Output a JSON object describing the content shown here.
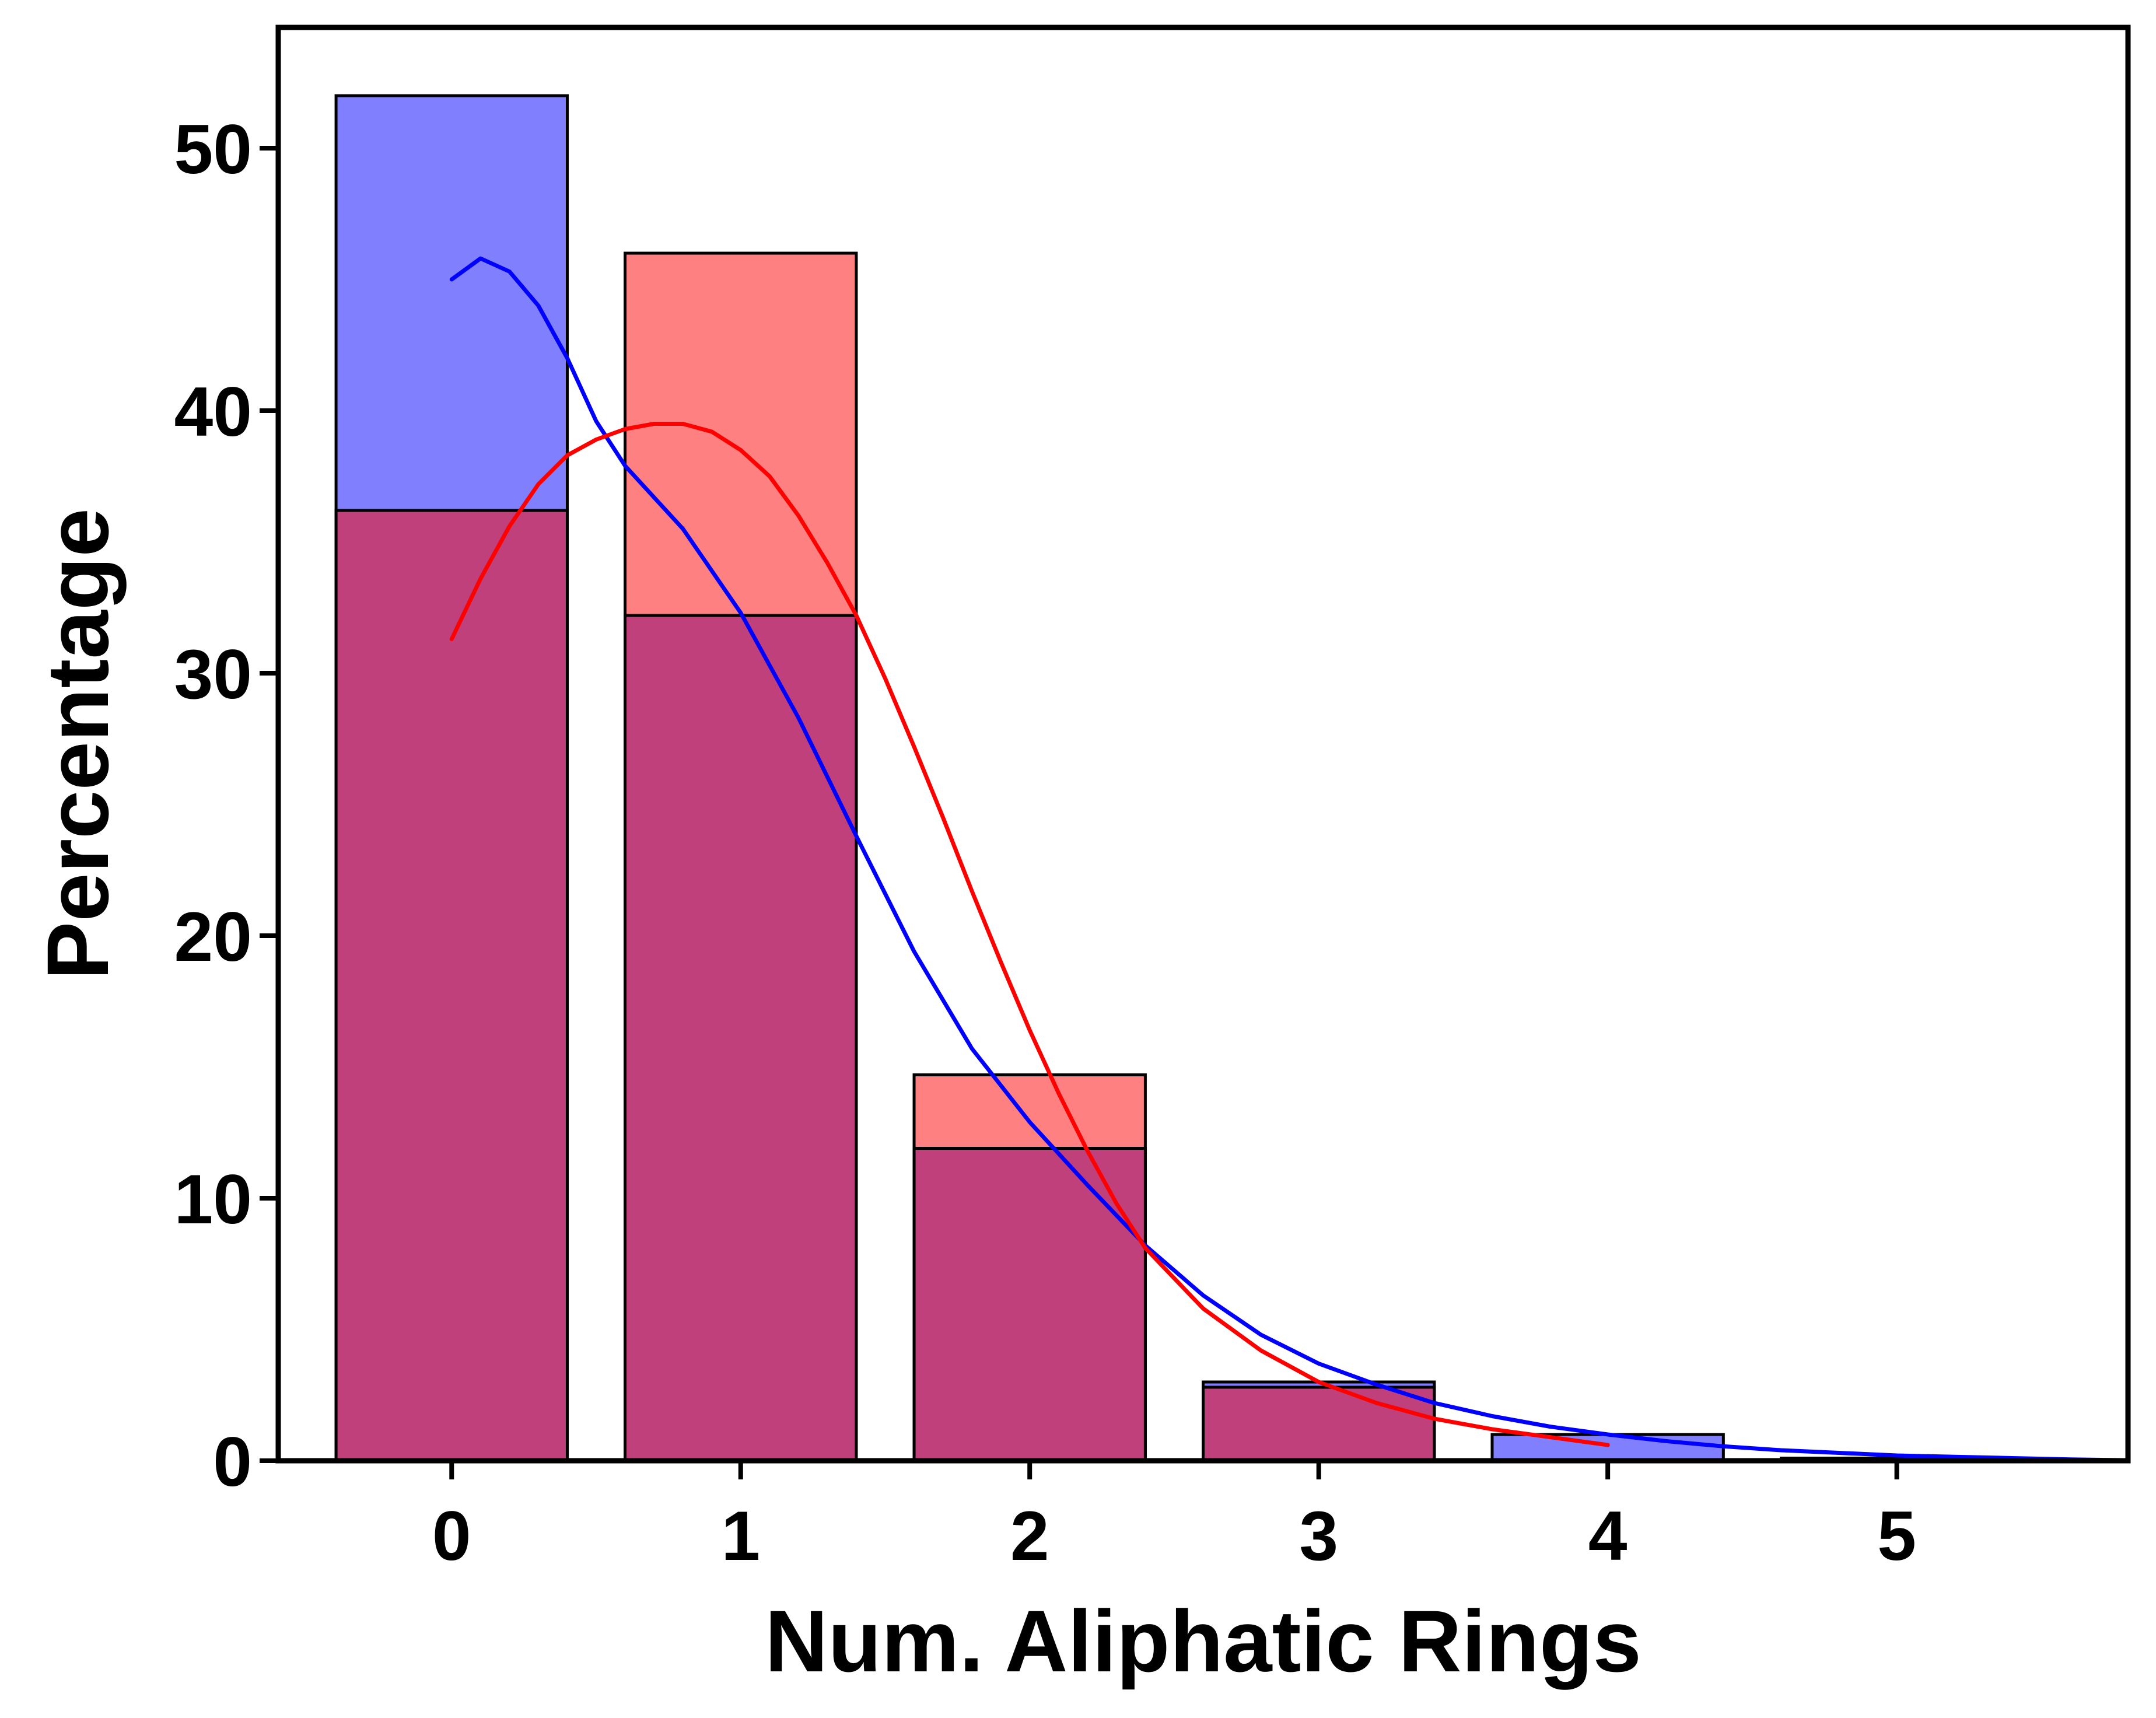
{
  "chart_data": {
    "type": "bar",
    "xlabel": "Num. Aliphatic Rings",
    "ylabel": "Percentage",
    "xlim": [
      -0.6,
      5.8
    ],
    "ylim": [
      0,
      54.6
    ],
    "xticks": [
      0,
      1,
      2,
      3,
      4,
      5
    ],
    "yticks": [
      0,
      10,
      20,
      30,
      40,
      50
    ],
    "grid": false,
    "legend": "none",
    "bar_width": 0.8,
    "overlap_color": "#c0407c",
    "series": [
      {
        "color": "#8080ff",
        "line_color": "#0000ff",
        "x": [
          0,
          1,
          2,
          3,
          4,
          5
        ],
        "values": [
          52.0,
          32.2,
          11.9,
          3.0,
          1.0,
          0.1
        ],
        "kde": [
          [
            0.0,
            45.0
          ],
          [
            0.1,
            45.8
          ],
          [
            0.2,
            45.3
          ],
          [
            0.3,
            44.0
          ],
          [
            0.4,
            42.0
          ],
          [
            0.5,
            39.6
          ],
          [
            0.6,
            37.9
          ],
          [
            0.8,
            35.5
          ],
          [
            1.0,
            32.3
          ],
          [
            1.2,
            28.3
          ],
          [
            1.4,
            23.8
          ],
          [
            1.6,
            19.4
          ],
          [
            1.8,
            15.7
          ],
          [
            2.0,
            12.9
          ],
          [
            2.2,
            10.5
          ],
          [
            2.4,
            8.2
          ],
          [
            2.6,
            6.3
          ],
          [
            2.8,
            4.8
          ],
          [
            3.0,
            3.7
          ],
          [
            3.2,
            2.9
          ],
          [
            3.4,
            2.2
          ],
          [
            3.6,
            1.7
          ],
          [
            3.8,
            1.3
          ],
          [
            4.0,
            1.0
          ],
          [
            4.2,
            0.75
          ],
          [
            4.4,
            0.55
          ],
          [
            4.6,
            0.4
          ],
          [
            4.8,
            0.3
          ],
          [
            5.0,
            0.2
          ],
          [
            5.2,
            0.15
          ],
          [
            5.4,
            0.1
          ],
          [
            5.6,
            0.05
          ],
          [
            5.8,
            0.02
          ]
        ]
      },
      {
        "color": "#ff8080",
        "line_color": "#ff0000",
        "x": [
          0,
          1,
          2,
          3,
          4
        ],
        "values": [
          36.2,
          46.0,
          14.7,
          2.8,
          0.0
        ],
        "kde": [
          [
            0.0,
            31.3
          ],
          [
            0.1,
            33.6
          ],
          [
            0.2,
            35.6
          ],
          [
            0.3,
            37.2
          ],
          [
            0.4,
            38.3
          ],
          [
            0.5,
            38.9
          ],
          [
            0.6,
            39.3
          ],
          [
            0.7,
            39.5
          ],
          [
            0.8,
            39.5
          ],
          [
            0.9,
            39.2
          ],
          [
            1.0,
            38.5
          ],
          [
            1.1,
            37.5
          ],
          [
            1.2,
            36.0
          ],
          [
            1.3,
            34.2
          ],
          [
            1.4,
            32.2
          ],
          [
            1.5,
            29.8
          ],
          [
            1.6,
            27.2
          ],
          [
            1.7,
            24.5
          ],
          [
            1.8,
            21.7
          ],
          [
            1.9,
            19.0
          ],
          [
            2.0,
            16.4
          ],
          [
            2.1,
            14.0
          ],
          [
            2.2,
            11.8
          ],
          [
            2.3,
            9.8
          ],
          [
            2.4,
            8.1
          ],
          [
            2.6,
            5.8
          ],
          [
            2.8,
            4.2
          ],
          [
            3.0,
            3.0
          ],
          [
            3.2,
            2.2
          ],
          [
            3.4,
            1.6
          ],
          [
            3.6,
            1.2
          ],
          [
            3.8,
            0.9
          ],
          [
            4.0,
            0.6
          ]
        ]
      }
    ]
  }
}
